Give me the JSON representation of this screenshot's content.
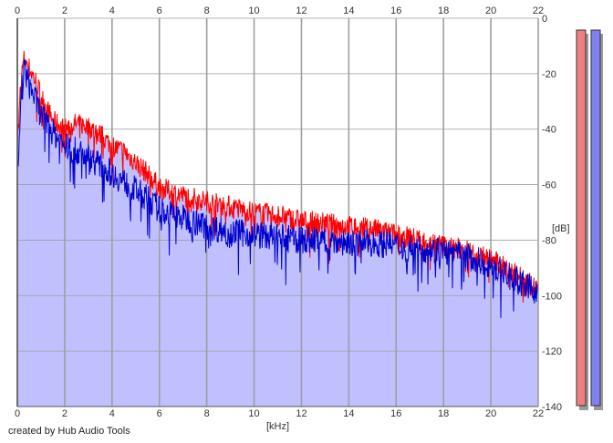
{
  "chart_data": {
    "type": "area",
    "xlabel": "[kHz]",
    "ylabel": "[dB]",
    "xlim": [
      0,
      22
    ],
    "ylim": [
      -140,
      0
    ],
    "x_ticks": [
      0,
      2,
      4,
      6,
      8,
      10,
      12,
      14,
      16,
      18,
      20,
      22
    ],
    "y_ticks": [
      0,
      -20,
      -40,
      -60,
      -80,
      -100,
      -120,
      -140
    ],
    "grid": true,
    "fill_color": "#c0c0ff",
    "background_color": "#ffffff",
    "grid_color": "#9e9e9e",
    "series": [
      {
        "color": "#ff0000",
        "x": [
          0.05,
          0.15,
          0.3,
          0.5,
          0.8,
          1.0,
          1.5,
          2.0,
          2.5,
          3.0,
          3.5,
          4.0,
          4.5,
          5.0,
          5.5,
          6.0,
          7.0,
          8.0,
          9.0,
          10.0,
          11.0,
          12.0,
          13.0,
          14.0,
          15.0,
          16.0,
          17.0,
          18.0,
          19.0,
          20.0,
          21.0,
          22.0
        ],
        "values": [
          -40,
          -22,
          -14,
          -18,
          -23,
          -28,
          -37,
          -40,
          -38,
          -39,
          -42,
          -46,
          -48,
          -52,
          -56,
          -61,
          -64,
          -66,
          -68,
          -70,
          -71,
          -73,
          -74,
          -75,
          -76,
          -78,
          -80,
          -82,
          -84,
          -87,
          -92,
          -98
        ]
      },
      {
        "color": "#0000cc",
        "x": [
          0.05,
          0.15,
          0.3,
          0.5,
          0.8,
          1.0,
          1.5,
          2.0,
          2.5,
          3.0,
          3.5,
          4.0,
          4.5,
          5.0,
          5.5,
          6.0,
          7.0,
          8.0,
          9.0,
          10.0,
          11.0,
          12.0,
          13.0,
          14.0,
          15.0,
          16.0,
          17.0,
          18.0,
          19.0,
          20.0,
          21.0,
          22.0
        ],
        "values": [
          -55,
          -28,
          -18,
          -24,
          -30,
          -35,
          -41,
          -46,
          -48,
          -50,
          -53,
          -56,
          -59,
          -62,
          -65,
          -69,
          -72,
          -75,
          -77,
          -78,
          -79,
          -80,
          -80,
          -81,
          -81,
          -82,
          -83,
          -84,
          -86,
          -89,
          -94,
          -99
        ]
      }
    ],
    "channel_bars": [
      "#f08080",
      "#8080f0"
    ]
  },
  "footer": {
    "credit": "created by Hub Audio Tools"
  }
}
